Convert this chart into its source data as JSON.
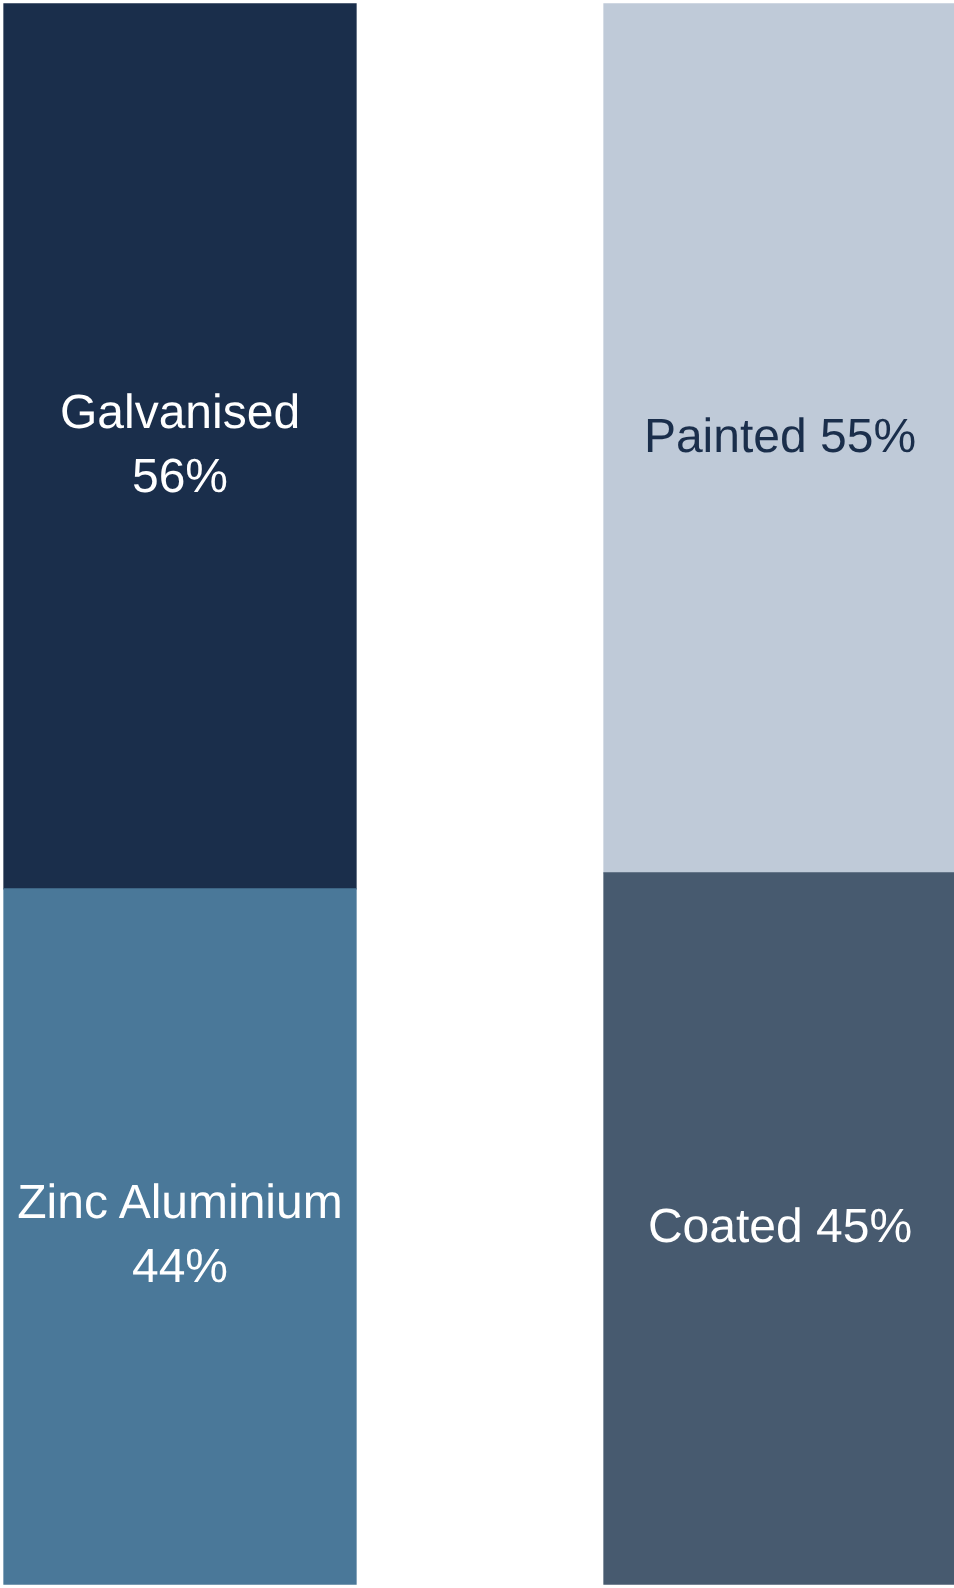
{
  "chart_data": {
    "type": "bar",
    "stacked": true,
    "categories": [
      null,
      null
    ],
    "series": [
      {
        "name": "Zinc Aluminium",
        "color": "#4a7899",
        "values": [
          44,
          null
        ],
        "value_labels": [
          "44%",
          null
        ]
      },
      {
        "name": "Galvanised",
        "color": "#1a2e4b",
        "values": [
          56,
          null
        ],
        "value_labels": [
          "56%",
          null
        ]
      },
      {
        "name": "Coated",
        "color": "#475a6f",
        "values": [
          null,
          45
        ],
        "value_labels": [
          null,
          "45%"
        ]
      },
      {
        "name": "Painted",
        "color": "#bfcad8",
        "values": [
          null,
          55
        ],
        "value_labels": [
          null,
          "55%"
        ]
      }
    ]
  }
}
